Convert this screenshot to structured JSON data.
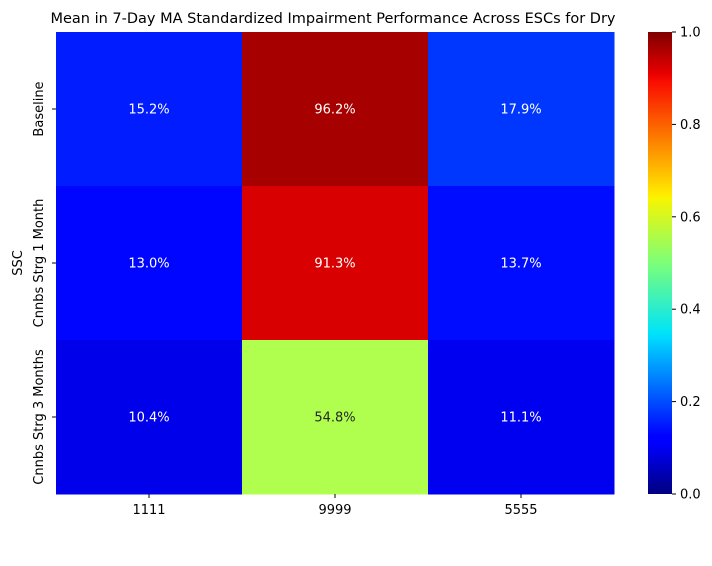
{
  "chart_data": {
    "type": "heatmap",
    "title": "Mean in 7-Day MA Standardized Impairment Performance Across ESCs for Dry",
    "xlabel": "",
    "ylabel": "SSC",
    "x_categories": [
      "1111",
      "9999",
      "5555"
    ],
    "y_categories": [
      "Baseline",
      "Cnnbs Strg 1 Month",
      "Cnnbs Strg 3 Months"
    ],
    "values": [
      [
        0.152,
        0.962,
        0.179
      ],
      [
        0.13,
        0.913,
        0.137
      ],
      [
        0.104,
        0.548,
        0.111
      ]
    ],
    "annotations": [
      [
        "15.2%",
        "96.2%",
        "17.9%"
      ],
      [
        "13.0%",
        "91.3%",
        "13.7%"
      ],
      [
        "10.4%",
        "54.8%",
        "11.1%"
      ]
    ],
    "colormap": "jet",
    "color_range": [
      0,
      1
    ],
    "colorbar_ticks": [
      {
        "value": 0.0,
        "label": "0.0"
      },
      {
        "value": 0.2,
        "label": "0.2"
      },
      {
        "value": 0.4,
        "label": "0.4"
      },
      {
        "value": 0.6,
        "label": "0.6"
      },
      {
        "value": 0.8,
        "label": "0.8"
      },
      {
        "value": 1.0,
        "label": "1.0"
      }
    ],
    "colorbar_position": "right",
    "grid": false
  }
}
